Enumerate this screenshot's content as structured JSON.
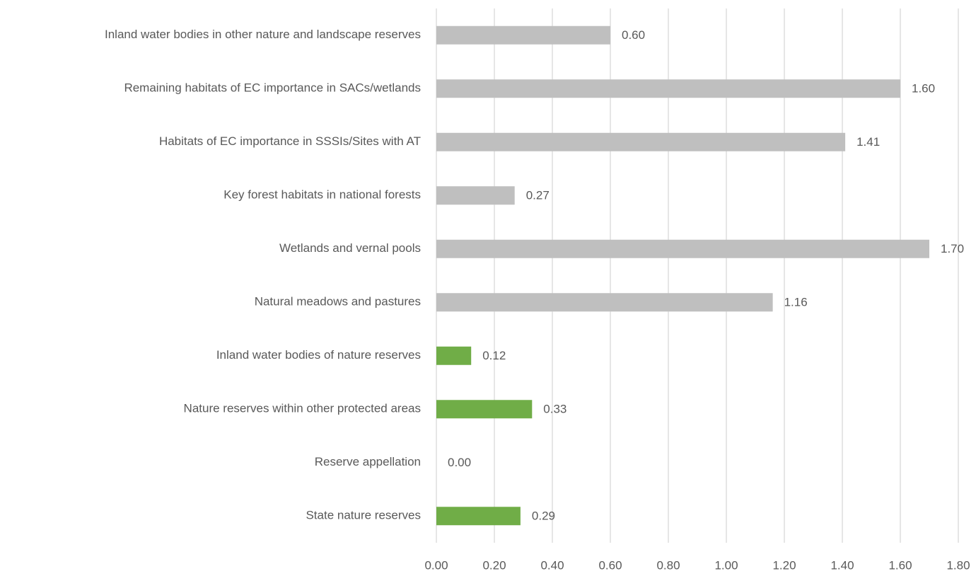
{
  "chart_data": {
    "type": "hbar",
    "categories": [
      "Inland water bodies in other nature and landscape reserves",
      "Remaining habitats of EC importance in SACs/wetlands",
      "Habitats of EC importance in SSSIs/Sites with AT",
      "Key forest habitats in national forests",
      "Wetlands and vernal pools",
      "Natural meadows and pastures",
      "Inland water bodies of nature reserves",
      "Nature reserves within other protected areas",
      "Reserve appellation",
      "State nature reserves"
    ],
    "values": [
      0.6,
      1.6,
      1.41,
      0.27,
      1.7,
      1.16,
      0.12,
      0.33,
      0,
      0.29
    ],
    "value_labels": [
      "0.60",
      "1.60",
      "1.41",
      "0.27",
      "1.70",
      "1.16",
      "0.12",
      "0.33",
      "0.00",
      "0.29"
    ],
    "colors": [
      "#bfbfbf",
      "#bfbfbf",
      "#bfbfbf",
      "#bfbfbf",
      "#bfbfbf",
      "#bfbfbf",
      "#70ad47",
      "#70ad47",
      "#70ad47",
      "#70ad47"
    ],
    "xlim": [
      0,
      1.8
    ],
    "xticks": [
      {
        "value": 0,
        "label": "0.00"
      },
      {
        "value": 0.2,
        "label": "0.20"
      },
      {
        "value": 0.4,
        "label": "0.40"
      },
      {
        "value": 0.6,
        "label": "0.60"
      },
      {
        "value": 0.8,
        "label": "0.80"
      },
      {
        "value": 1,
        "label": "1.00"
      },
      {
        "value": 1.2,
        "label": "1.20"
      },
      {
        "value": 1.4,
        "label": "1.40"
      },
      {
        "value": 1.6,
        "label": "1.60"
      },
      {
        "value": 1.8,
        "label": "1.80"
      }
    ],
    "grid": true
  }
}
